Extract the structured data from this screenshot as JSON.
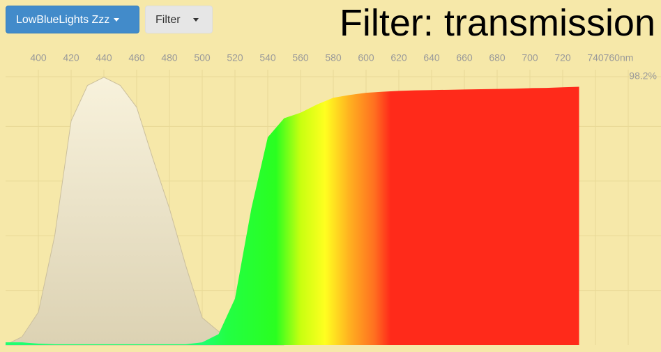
{
  "buttons": [
    {
      "label": "LowBlueLights Zzz",
      "color": "#428bca"
    },
    {
      "label": "Filter",
      "color": "#e6e6e6"
    }
  ],
  "chart_data": {
    "type": "area",
    "title": "Filter: transmission",
    "x": [
      380,
      390,
      400,
      410,
      420,
      430,
      440,
      450,
      460,
      470,
      480,
      490,
      500,
      510,
      520,
      530,
      540,
      550,
      560,
      570,
      580,
      590,
      600,
      610,
      620,
      630,
      640,
      650,
      660,
      670,
      680,
      690,
      700,
      710,
      720,
      730
    ],
    "series": [
      {
        "color": "#ddd3b5",
        "values": [
          0,
          3,
          12,
          40,
          82,
          95,
          98,
          95,
          87,
          68,
          50,
          29,
          10,
          5,
          2,
          1,
          0.5,
          0,
          null,
          null,
          null,
          null,
          null,
          null,
          null,
          null,
          null,
          null,
          null,
          null,
          null,
          null,
          null,
          null,
          null,
          null
        ]
      },
      {
        "color": "spectrum",
        "values": [
          1,
          1,
          0.5,
          0.3,
          0.3,
          0.3,
          0.3,
          0.3,
          0.3,
          0.3,
          0.3,
          0.3,
          1,
          4,
          17,
          50,
          76,
          83,
          85,
          88,
          90.5,
          91.5,
          92.3,
          92.7,
          93,
          93.2,
          93.3,
          93.4,
          93.5,
          93.6,
          93.7,
          93.8,
          94,
          94.1,
          94.3,
          94.5
        ]
      }
    ],
    "spectrum_stops": [
      [
        500,
        "#20ff70"
      ],
      [
        515,
        "#22ff44"
      ],
      [
        545,
        "#2aff20"
      ],
      [
        560,
        "#c8ff10"
      ],
      [
        575,
        "#ffff20"
      ],
      [
        590,
        "#ffb020"
      ],
      [
        605,
        "#ff7020"
      ],
      [
        615,
        "#ff2a1a"
      ]
    ],
    "xlim": [
      380,
      780
    ],
    "xticks": [
      400,
      420,
      440,
      460,
      480,
      500,
      520,
      540,
      560,
      580,
      600,
      620,
      640,
      660,
      680,
      700,
      720,
      740,
      {
        "value": 760,
        "label": "760nm"
      }
    ],
    "ylim": [
      0,
      98.2
    ],
    "yticks": [
      {
        "value": 98.2,
        "label": "98.2%"
      }
    ],
    "y_gridlines": [
      20,
      40,
      60,
      80
    ],
    "grid": true
  }
}
